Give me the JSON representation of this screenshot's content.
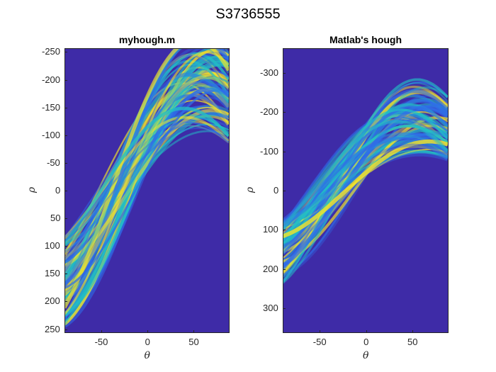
{
  "figure_title": "S3736555",
  "colors": {
    "background": "#3e2ba7",
    "low": "#2f6de8",
    "mid": "#22bfc4",
    "high": "#f6e626",
    "axis": "#262626"
  },
  "chart_data": [
    {
      "type": "heatmap",
      "title": "myhough.m",
      "xlabel": "θ",
      "ylabel": "ρ",
      "xlim": [
        -90,
        89
      ],
      "ylim": [
        -257,
        257
      ],
      "y_reversed": true,
      "xticks": [
        -50,
        0,
        50
      ],
      "yticks": [
        -250,
        -200,
        -150,
        -100,
        -50,
        0,
        50,
        100,
        150,
        200,
        250
      ],
      "xticklabels": [
        "-50",
        "0",
        "50"
      ],
      "yticklabels": [
        "-250",
        "-200",
        "-150",
        "-100",
        "-50",
        "0",
        "50",
        "100",
        "150",
        "200",
        "250"
      ],
      "colormap": "parula"
    },
    {
      "type": "heatmap",
      "title": "Matlab's hough",
      "xlabel": "θ",
      "ylabel": "ρ",
      "xlim": [
        -90,
        89
      ],
      "ylim": [
        -363,
        363
      ],
      "y_reversed": true,
      "xticks": [
        -50,
        0,
        50
      ],
      "yticks": [
        -300,
        -200,
        -100,
        0,
        100,
        200,
        300
      ],
      "xticklabels": [
        "-50",
        "0",
        "50"
      ],
      "yticklabels": [
        "-300",
        "-200",
        "-100",
        "0",
        "100",
        "200",
        "300"
      ],
      "colormap": "parula"
    }
  ]
}
